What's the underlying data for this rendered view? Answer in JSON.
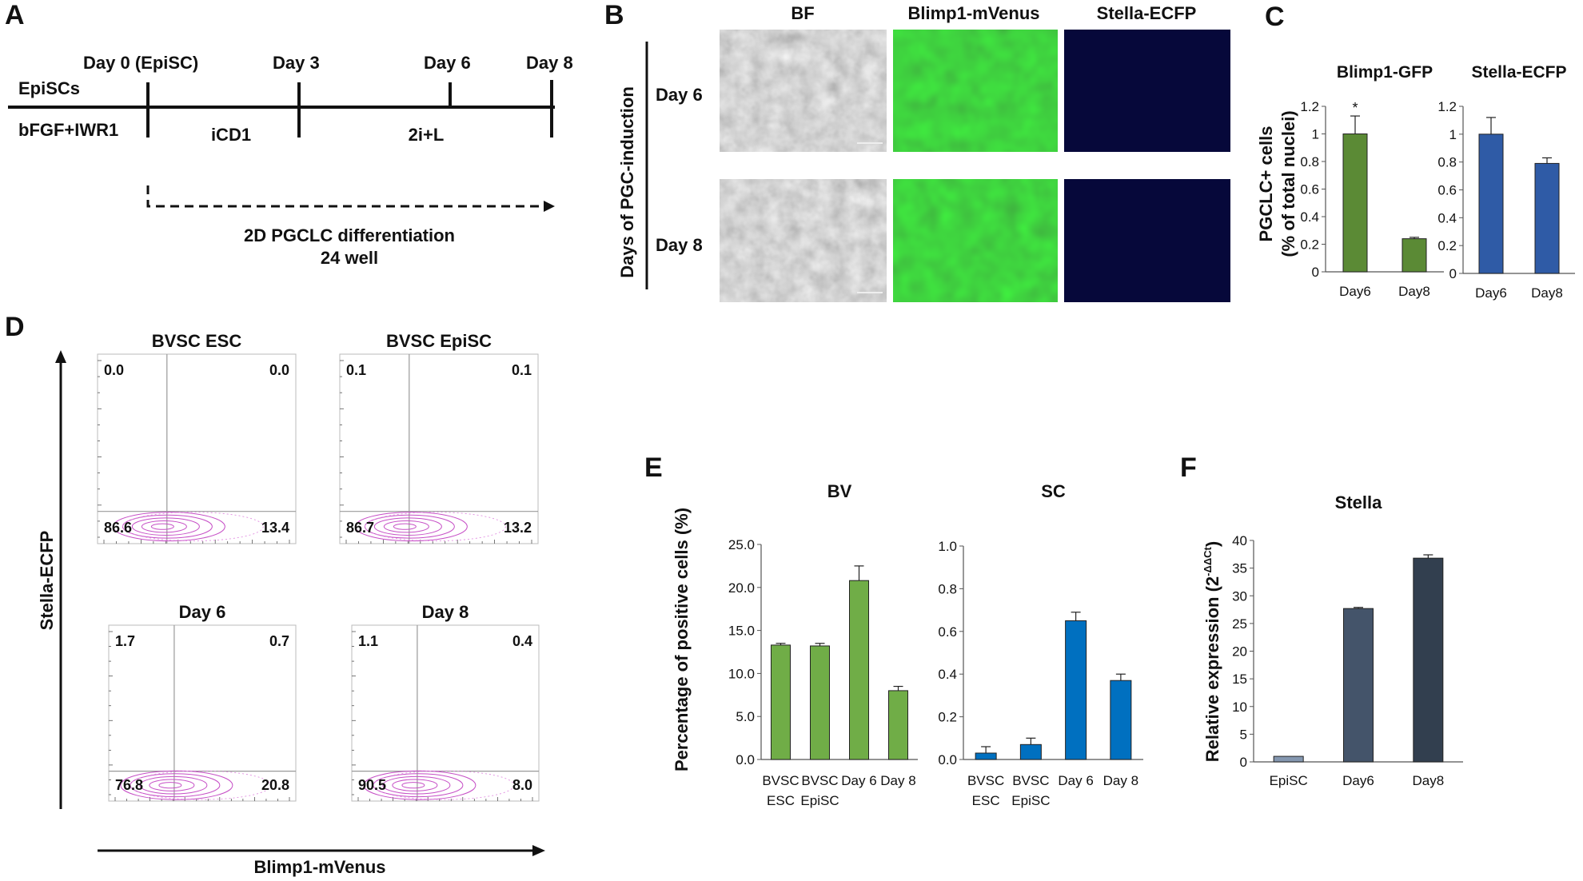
{
  "panels": {
    "A": {
      "letter": "A",
      "row_label": "EpiSCs",
      "medium_label": "bFGF+IWR1",
      "days": [
        "Day 0 (EpiSC)",
        "Day 3",
        "Day 6",
        "Day 8"
      ],
      "stages": [
        "iCD1",
        "2i+L"
      ],
      "diff_label_1": "2D PGCLC differentiation",
      "diff_label_2": "24 well"
    },
    "B": {
      "letter": "B",
      "columns": [
        "BF",
        "Blimp1-mVenus",
        "Stella-ECFP"
      ],
      "rows": [
        "Day 6",
        "Day 8"
      ],
      "side_label": "Days of PGC-induction"
    },
    "C": {
      "letter": "C",
      "ylabel_1": "PGCLC+ cells",
      "ylabel_2": "(% of total nuclei)"
    },
    "D": {
      "letter": "D",
      "ylabel": "Stella-ECFP",
      "xlabel": "Blimp1-mVenus",
      "plots": [
        {
          "title": "BVSC ESC",
          "q_ul": "0.0",
          "q_ur": "0.0",
          "q_ll": "86.6",
          "q_lr": "13.4"
        },
        {
          "title": "BVSC EpiSC",
          "q_ul": "0.1",
          "q_ur": "0.1",
          "q_ll": "86.7",
          "q_lr": "13.2"
        },
        {
          "title": "Day 6",
          "q_ul": "1.7",
          "q_ur": "0.7",
          "q_ll": "76.8",
          "q_lr": "20.8"
        },
        {
          "title": "Day 8",
          "q_ul": "1.1",
          "q_ur": "0.4",
          "q_ll": "90.5",
          "q_lr": "8.0"
        }
      ]
    },
    "E": {
      "letter": "E",
      "ylabel": "Percentage of positive cells (%)"
    },
    "F": {
      "letter": "F"
    }
  },
  "chart_data": [
    {
      "id": "C1",
      "type": "bar",
      "title": "Blimp1-GFP",
      "categories": [
        "Day6",
        "Day8"
      ],
      "values": [
        1.0,
        0.24
      ],
      "errors": [
        0.13,
        0.01
      ],
      "ylim": [
        0,
        1.2
      ],
      "yticks": [
        "0",
        "0.2",
        "0.4",
        "0.6",
        "0.8",
        "1",
        "1.2"
      ],
      "annotation": "*",
      "color": "#5b8a35"
    },
    {
      "id": "C2",
      "type": "bar",
      "title": "Stella-ECFP",
      "categories": [
        "Day6",
        "Day8"
      ],
      "values": [
        1.0,
        0.79
      ],
      "errors": [
        0.12,
        0.04
      ],
      "ylim": [
        0,
        1.2
      ],
      "yticks": [
        "0",
        "0.2",
        "0.4",
        "0.6",
        "0.8",
        "1",
        "1.2"
      ],
      "color": "#2f5ba6"
    },
    {
      "id": "E1",
      "type": "bar",
      "title": "BV",
      "categories": [
        "BVSC\nESC",
        "BVSC\nEpiSC",
        "Day 6",
        "Day 8"
      ],
      "values": [
        13.3,
        13.2,
        20.8,
        8.0
      ],
      "errors": [
        0.2,
        0.3,
        1.7,
        0.5
      ],
      "ylim": [
        0,
        25
      ],
      "yticks": [
        "0.0",
        "5.0",
        "10.0",
        "15.0",
        "20.0",
        "25.0"
      ],
      "color": "#70ad47"
    },
    {
      "id": "E2",
      "type": "bar",
      "title": "SC",
      "categories": [
        "BVSC\nESC",
        "BVSC\nEpiSC",
        "Day 6",
        "Day 8"
      ],
      "values": [
        0.03,
        0.07,
        0.65,
        0.37
      ],
      "errors": [
        0.03,
        0.03,
        0.04,
        0.03
      ],
      "ylim": [
        0,
        1.0
      ],
      "yticks": [
        "0.0",
        "0.2",
        "0.4",
        "0.6",
        "0.8",
        "1.0"
      ],
      "color": "#0070c0"
    },
    {
      "id": "F1",
      "type": "bar",
      "title": "Stella",
      "categories": [
        "EpiSC",
        "Day6",
        "Day8"
      ],
      "values": [
        1.0,
        27.7,
        36.8
      ],
      "errors": [
        0,
        0.2,
        0.6
      ],
      "ylim": [
        0,
        40
      ],
      "yticks": [
        "0",
        "5",
        "10",
        "15",
        "20",
        "25",
        "30",
        "35",
        "40"
      ],
      "ylabel": "Relative expression (2",
      "ylabel_sup": "-ΔΔCt",
      "ylabel_end": ")",
      "colors": [
        "#8497b0",
        "#44546a",
        "#323f4f"
      ]
    }
  ]
}
